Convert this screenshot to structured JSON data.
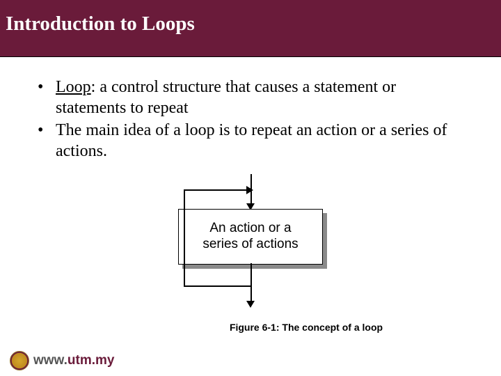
{
  "header": {
    "title": "Introduction to Loops"
  },
  "bullets": [
    {
      "term": "Loop",
      "rest": ": a control structure that causes a statement or statements to repeat"
    },
    {
      "text": "The main idea of a loop is to repeat an action or a series of actions."
    }
  ],
  "diagram": {
    "type": "flowchart",
    "box_label": "An action or a\nseries of actions",
    "box_fill": "#ffffff",
    "box_border": "#000000",
    "shadow_color": "#8a8a8a",
    "line_color": "#000000",
    "caption": "Figure 6-1: The concept of a loop"
  },
  "footer": {
    "site_prefix": "www.",
    "site_domain": "utm.my"
  },
  "colors": {
    "header_bg": "#6a1b3a",
    "header_fg": "#ffffff",
    "text": "#000000"
  }
}
